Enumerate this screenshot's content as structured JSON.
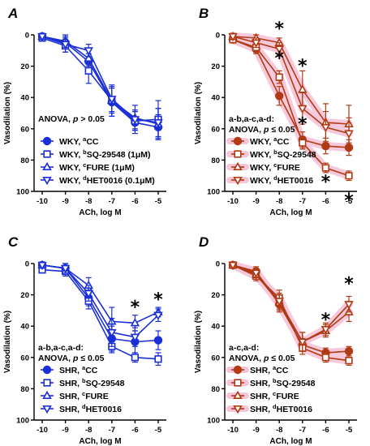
{
  "colors": {
    "blue": "#1a2fd6",
    "red": "#b03a14",
    "highlight": "#f7c4d8"
  },
  "chart_data": [
    {
      "type": "line",
      "panel": "A",
      "color": "blue",
      "highlight": false,
      "x": [
        -10,
        -9,
        -8,
        -7,
        -6,
        -5
      ],
      "x_tick_labels": [
        "-10",
        "-9",
        "-8",
        "-7",
        "-6",
        "-5"
      ],
      "xlabel": "ACh, log M",
      "ylabel": "Vasodilation (%)",
      "ylim": [
        100,
        0
      ],
      "y_ticks": [
        0,
        20,
        40,
        60,
        80,
        100
      ],
      "grid": false,
      "legend_position": "bottom-left",
      "annotation_prefix": "",
      "annotation": "ANOVA, p > 0.05",
      "series": [
        {
          "name": "WKY, aCC",
          "name_parts": [
            "WKY, ",
            "a",
            "CC"
          ],
          "marker": "circle",
          "fill": true,
          "values": [
            1,
            5,
            17,
            43,
            56,
            59
          ],
          "errors": [
            2,
            3,
            5,
            9,
            7,
            8
          ]
        },
        {
          "name": "WKY, bSQ-29548 (1μM)",
          "name_parts": [
            "WKY, ",
            "b",
            "SQ-29548 (1μM)"
          ],
          "marker": "square",
          "fill": false,
          "values": [
            2,
            7,
            23,
            42,
            55,
            54
          ],
          "errors": [
            2,
            4,
            8,
            10,
            6,
            12
          ]
        },
        {
          "name": "WKY, cFURE (1μM)",
          "name_parts": [
            "WKY, ",
            "c",
            "FURE (1μM)"
          ],
          "marker": "triangle-up",
          "fill": false,
          "values": [
            1,
            4,
            15,
            42,
            53,
            57
          ],
          "errors": [
            2,
            4,
            5,
            8,
            8,
            10
          ]
        },
        {
          "name": "WKY, dHET0016 (0.1μM)",
          "name_parts": [
            "WKY, ",
            "d",
            "HET0016 (0.1μM)"
          ],
          "marker": "triangle-down",
          "fill": false,
          "values": [
            1,
            6,
            10,
            41,
            54,
            56
          ],
          "errors": [
            2,
            5,
            4,
            8,
            6,
            9
          ]
        }
      ],
      "stars": []
    },
    {
      "type": "line",
      "panel": "B",
      "color": "red",
      "highlight": true,
      "x": [
        -10,
        -9,
        -8,
        -7,
        -6,
        -5
      ],
      "x_tick_labels": [
        "-10",
        "-9",
        "-8",
        "-7",
        "-6",
        "-5"
      ],
      "xlabel": "ACh, log M",
      "ylabel": "Vasodilation (%)",
      "ylim": [
        100,
        0
      ],
      "y_ticks": [
        0,
        20,
        40,
        60,
        80,
        100
      ],
      "grid": false,
      "legend_position": "bottom-left",
      "annotation_prefix": "a-b,a-c,a-d:",
      "annotation": "ANOVA, p ≤ 0.05",
      "series": [
        {
          "name": "WKY, aCC",
          "name_parts": [
            "WKY, ",
            "a",
            "CC"
          ],
          "marker": "circle",
          "fill": true,
          "values": [
            3,
            9,
            39,
            67,
            71,
            72
          ],
          "errors": [
            2,
            3,
            6,
            5,
            5,
            5
          ]
        },
        {
          "name": "WKY, bSQ-29548",
          "name_parts": [
            "WKY, ",
            "b",
            "SQ-29548"
          ],
          "marker": "square",
          "fill": false,
          "values": [
            3,
            8,
            27,
            69,
            85,
            90
          ],
          "errors": [
            2,
            3,
            4,
            4,
            3,
            3
          ]
        },
        {
          "name": "WKY, cFURE",
          "name_parts": [
            "WKY, ",
            "c",
            "FURE"
          ],
          "marker": "triangle-up",
          "fill": false,
          "values": [
            1,
            2,
            5,
            35,
            56,
            57
          ],
          "errors": [
            2,
            2,
            3,
            12,
            12,
            12
          ]
        },
        {
          "name": "WKY, dHET0016",
          "name_parts": [
            "WKY, ",
            "d",
            "HET0016"
          ],
          "marker": "triangle-down",
          "fill": false,
          "values": [
            1,
            5,
            9,
            47,
            59,
            63
          ],
          "errors": [
            2,
            3,
            4,
            10,
            10,
            10
          ]
        }
      ],
      "stars": [
        {
          "label": "*",
          "x": -8,
          "y": -6
        },
        {
          "label": "*",
          "x": -8,
          "y": 13
        },
        {
          "label": "*",
          "x": -7,
          "y": 18
        },
        {
          "label": "*",
          "x": -7,
          "y": 55
        },
        {
          "label": "*",
          "x": -6,
          "y": 92
        },
        {
          "label": "*",
          "x": -5,
          "y": 104
        }
      ]
    },
    {
      "type": "line",
      "panel": "C",
      "color": "blue",
      "highlight": false,
      "x": [
        -10,
        -9,
        -8,
        -7,
        -6,
        -5
      ],
      "x_tick_labels": [
        "-10",
        "-9",
        "-8",
        "-7",
        "-6",
        "-5"
      ],
      "xlabel": "ACh, log M",
      "ylabel": "Vasodilation (%)",
      "ylim": [
        100,
        0
      ],
      "y_ticks": [
        0,
        20,
        40,
        60,
        80,
        100
      ],
      "grid": false,
      "legend_position": "bottom-left",
      "annotation_prefix": "a-b,a-c,a-d:",
      "annotation": "ANOVA, p ≤ 0.05",
      "series": [
        {
          "name": "SHR, aCC",
          "name_parts": [
            "SHR, ",
            "a",
            "CC"
          ],
          "marker": "circle",
          "fill": true,
          "values": [
            1,
            3,
            22,
            48,
            50,
            49
          ],
          "errors": [
            2,
            3,
            5,
            8,
            7,
            6
          ]
        },
        {
          "name": "SHR, bSQ-29548",
          "name_parts": [
            "SHR, ",
            "b",
            "SQ-29548"
          ],
          "marker": "square",
          "fill": false,
          "values": [
            4,
            5,
            24,
            53,
            60,
            61
          ],
          "errors": [
            2,
            3,
            5,
            4,
            3,
            4
          ]
        },
        {
          "name": "SHR, cFURE",
          "name_parts": [
            "SHR, ",
            "c",
            "FURE"
          ],
          "marker": "triangle-up",
          "fill": false,
          "values": [
            1,
            3,
            14,
            37,
            38,
            31
          ],
          "errors": [
            2,
            3,
            5,
            9,
            5,
            3
          ]
        },
        {
          "name": "SHR, dHET0016",
          "name_parts": [
            "SHR, ",
            "d",
            "HET0016"
          ],
          "marker": "triangle-down",
          "fill": false,
          "values": [
            1,
            3,
            19,
            44,
            47,
            33
          ],
          "errors": [
            2,
            3,
            5,
            9,
            6,
            4
          ]
        }
      ],
      "stars": [
        {
          "label": "*",
          "x": -6,
          "y": 26
        },
        {
          "label": "*",
          "x": -5,
          "y": 21
        }
      ]
    },
    {
      "type": "line",
      "panel": "D",
      "color": "red",
      "highlight": true,
      "x": [
        -10,
        -9,
        -8,
        -7,
        -6,
        -5
      ],
      "x_tick_labels": [
        "-10",
        "-9",
        "-8",
        "-7",
        "-6",
        "-5"
      ],
      "xlabel": "ACh, log M",
      "ylabel": "Vasodilation (%)",
      "ylim": [
        100,
        0
      ],
      "y_ticks": [
        0,
        20,
        40,
        60,
        80,
        100
      ],
      "grid": false,
      "legend_position": "bottom-left",
      "annotation_prefix": "a-c,a-d:",
      "annotation": "ANOVA, p ≤ 0.05",
      "series": [
        {
          "name": "SHR, aCC",
          "name_parts": [
            "SHR, ",
            "a",
            "CC"
          ],
          "marker": "circle",
          "fill": true,
          "values": [
            1,
            5,
            26,
            52,
            57,
            56
          ],
          "errors": [
            2,
            3,
            5,
            4,
            3,
            3
          ]
        },
        {
          "name": "SHR, bSQ-29548",
          "name_parts": [
            "SHR, ",
            "b",
            "SQ-29548"
          ],
          "marker": "square",
          "fill": false,
          "values": [
            1,
            8,
            22,
            54,
            60,
            62
          ],
          "errors": [
            2,
            3,
            5,
            4,
            3,
            3
          ]
        },
        {
          "name": "SHR, cFURE",
          "name_parts": [
            "SHR, ",
            "c",
            "FURE"
          ],
          "marker": "triangle-up",
          "fill": false,
          "values": [
            1,
            7,
            25,
            50,
            43,
            31
          ],
          "errors": [
            2,
            3,
            5,
            6,
            4,
            6
          ]
        },
        {
          "name": "SHR, dHET0016",
          "name_parts": [
            "SHR, ",
            "d",
            "HET0016"
          ],
          "marker": "triangle-down",
          "fill": false,
          "values": [
            1,
            6,
            24,
            50,
            42,
            26
          ],
          "errors": [
            2,
            3,
            5,
            6,
            4,
            5
          ]
        }
      ],
      "stars": [
        {
          "label": "*",
          "x": -6,
          "y": 34
        },
        {
          "label": "*",
          "x": -5,
          "y": 11
        }
      ]
    }
  ]
}
